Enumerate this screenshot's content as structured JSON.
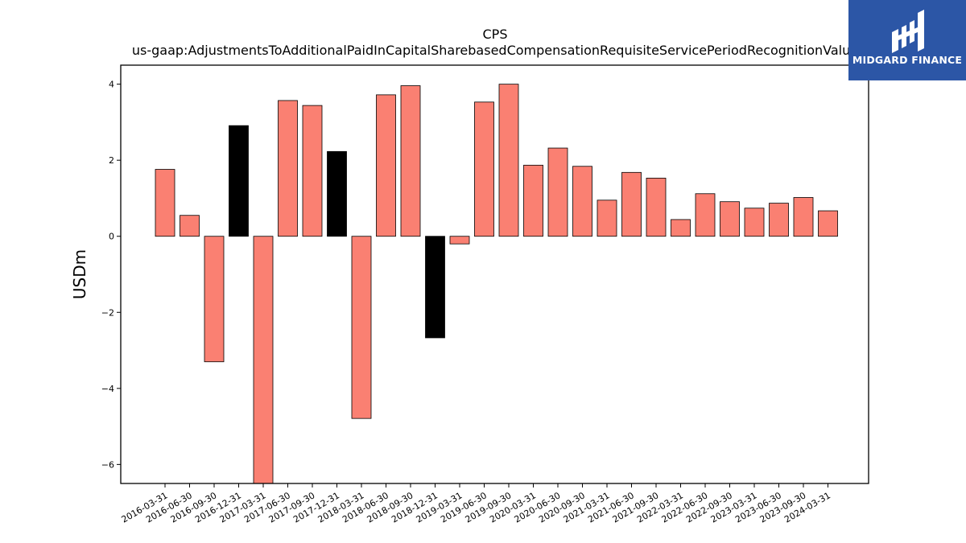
{
  "chart_data": {
    "type": "bar",
    "title": "CPS",
    "subtitle": "us-gaap:AdjustmentsToAdditionalPaidInCapitalSharebasedCompensationRequisiteServicePeriodRecognitionValue",
    "xlabel": "",
    "ylabel": "USDm",
    "ylim": [
      -6.5,
      4.5
    ],
    "yticks": [
      -6,
      -4,
      -2,
      0,
      2,
      4
    ],
    "grid": false,
    "categories": [
      "2016-03-31",
      "2016-06-30",
      "2016-09-30",
      "2016-12-31",
      "2017-03-31",
      "2017-06-30",
      "2017-09-30",
      "2017-12-31",
      "2018-03-31",
      "2018-06-30",
      "2018-09-30",
      "2018-12-31",
      "2019-03-31",
      "2019-06-30",
      "2019-09-30",
      "2020-03-31",
      "2020-06-30",
      "2020-09-30",
      "2021-03-31",
      "2021-06-30",
      "2021-09-30",
      "2022-03-31",
      "2022-06-30",
      "2022-09-30",
      "2023-03-31",
      "2023-06-30",
      "2023-09-30",
      "2024-03-31"
    ],
    "values": [
      1.76,
      0.55,
      -3.3,
      2.91,
      -6.6,
      3.57,
      3.44,
      2.23,
      -4.79,
      3.72,
      3.96,
      -2.67,
      -0.2,
      3.53,
      4.0,
      1.87,
      2.32,
      1.84,
      0.95,
      1.68,
      1.53,
      0.44,
      1.12,
      0.91,
      0.74,
      0.87,
      1.02,
      0.67
    ],
    "bar_colors": [
      "#fa8072",
      "#fa8072",
      "#fa8072",
      "#000000",
      "#fa8072",
      "#fa8072",
      "#fa8072",
      "#000000",
      "#fa8072",
      "#fa8072",
      "#fa8072",
      "#000000",
      "#fa8072",
      "#fa8072",
      "#fa8072",
      "#fa8072",
      "#fa8072",
      "#fa8072",
      "#fa8072",
      "#fa8072",
      "#fa8072",
      "#fa8072",
      "#fa8072",
      "#fa8072",
      "#fa8072",
      "#fa8072",
      "#fa8072",
      "#fa8072"
    ]
  },
  "logo": {
    "text": "MIDGARD FINANCE",
    "background": "#2c56a6",
    "icon": "midgard-monogram-icon"
  }
}
